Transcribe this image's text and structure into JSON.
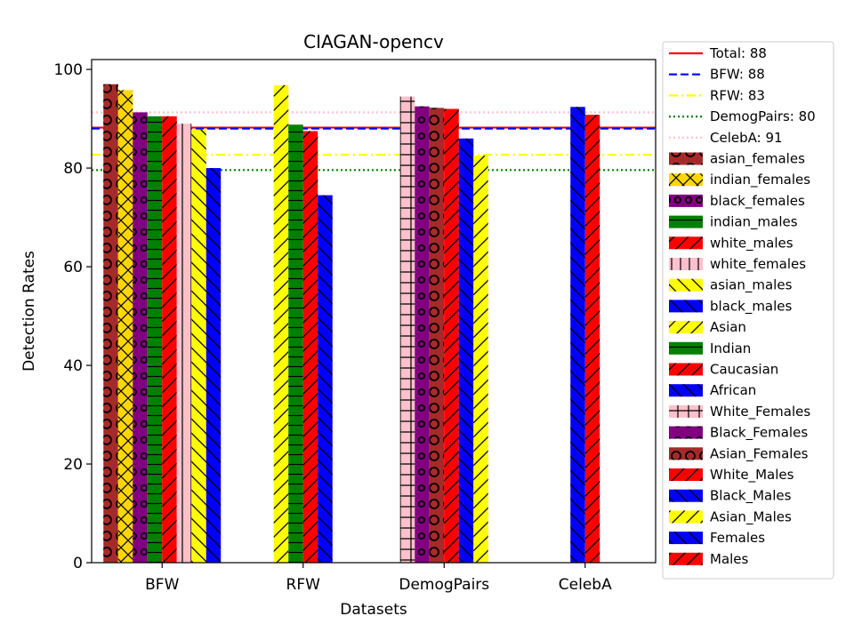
{
  "chart_data": {
    "type": "bar",
    "title": "CIAGAN-opencv",
    "xlabel": "Datasets",
    "ylabel": "Detection Rates",
    "ylim": [
      0,
      102
    ],
    "yticks": [
      0,
      20,
      40,
      60,
      80,
      100
    ],
    "categories": [
      "BFW",
      "RFW",
      "DemogPairs",
      "CelebA"
    ],
    "legend_position": "outside-right",
    "reference_lines": [
      {
        "label": "Total: 88",
        "value": 88.2,
        "color": "#ff0000",
        "style": "solid"
      },
      {
        "label": "BFW: 88",
        "value": 88.0,
        "color": "#0000ff",
        "style": "dashed"
      },
      {
        "label": "RFW: 83",
        "value": 82.7,
        "color": "#ffff00",
        "style": "dashdot"
      },
      {
        "label": "DemogPairs: 80",
        "value": 79.6,
        "color": "#008000",
        "style": "dotted"
      },
      {
        "label": "CelebA: 91",
        "value": 91.3,
        "color": "#ffc0cb",
        "style": "dotted"
      }
    ],
    "groups": [
      {
        "category": "BFW",
        "bars": [
          {
            "series": "asian_females",
            "value": 97.0
          },
          {
            "series": "indian_females",
            "value": 95.8
          },
          {
            "series": "black_females",
            "value": 91.3
          },
          {
            "series": "indian_males",
            "value": 90.5
          },
          {
            "series": "white_males",
            "value": 90.5
          },
          {
            "series": "white_females",
            "value": 89.0
          },
          {
            "series": "asian_males",
            "value": 87.8
          },
          {
            "series": "black_males",
            "value": 80.0
          }
        ]
      },
      {
        "category": "RFW",
        "bars": [
          {
            "series": "Asian",
            "value": 96.8
          },
          {
            "series": "Indian",
            "value": 88.8
          },
          {
            "series": "Caucasian",
            "value": 87.5
          },
          {
            "series": "African",
            "value": 74.5
          }
        ]
      },
      {
        "category": "DemogPairs",
        "bars": [
          {
            "series": "White_Females",
            "value": 94.5
          },
          {
            "series": "Black_Females",
            "value": 92.5
          },
          {
            "series": "Asian_Females",
            "value": 92.2
          },
          {
            "series": "White_Males",
            "value": 92.0
          },
          {
            "series": "Black_Males",
            "value": 86.0
          },
          {
            "series": "Asian_Males",
            "value": 82.5
          }
        ]
      },
      {
        "category": "CelebA",
        "bars": [
          {
            "series": "Females",
            "value": 92.4
          },
          {
            "series": "Males",
            "value": 90.8
          }
        ]
      }
    ],
    "series_styles": [
      {
        "name": "asian_females",
        "color": "#a52a2a",
        "hatch": "O"
      },
      {
        "name": "indian_females",
        "color": "#ffd700",
        "hatch": "x"
      },
      {
        "name": "black_females",
        "color": "#800080",
        "hatch": "o"
      },
      {
        "name": "indian_males",
        "color": "#008000",
        "hatch": "-"
      },
      {
        "name": "white_males",
        "color": "#ff0000",
        "hatch": "/"
      },
      {
        "name": "white_females",
        "color": "#ffc0cb",
        "hatch": "|"
      },
      {
        "name": "asian_males",
        "color": "#ffff00",
        "hatch": "\\"
      },
      {
        "name": "black_males",
        "color": "#0000ff",
        "hatch": "\\"
      },
      {
        "name": "Asian",
        "color": "#ffff00",
        "hatch": "/"
      },
      {
        "name": "Indian",
        "color": "#008000",
        "hatch": "-"
      },
      {
        "name": "Caucasian",
        "color": "#ff0000",
        "hatch": "/"
      },
      {
        "name": "African",
        "color": "#0000ff",
        "hatch": "\\"
      },
      {
        "name": "White_Females",
        "color": "#ffc0cb",
        "hatch": "+"
      },
      {
        "name": "Black_Females",
        "color": "#800080",
        "hatch": "o"
      },
      {
        "name": "Asian_Females",
        "color": "#a52a2a",
        "hatch": "O"
      },
      {
        "name": "White_Males",
        "color": "#ff0000",
        "hatch": "/"
      },
      {
        "name": "Black_Males",
        "color": "#0000ff",
        "hatch": "\\"
      },
      {
        "name": "Asian_Males",
        "color": "#ffff00",
        "hatch": "/"
      },
      {
        "name": "Females",
        "color": "#0000ff",
        "hatch": "\\"
      },
      {
        "name": "Males",
        "color": "#ff0000",
        "hatch": "/"
      }
    ]
  }
}
